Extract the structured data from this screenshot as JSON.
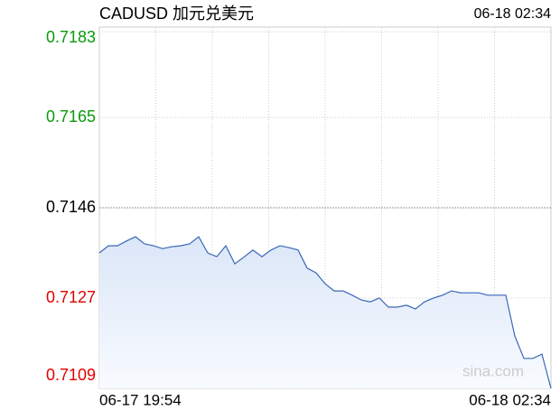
{
  "chart_data": {
    "type": "line",
    "title": "CADUSD 加元兑美元",
    "timestamp": "06-18 02:34",
    "watermark": "sina.com",
    "x_labels": [
      "06-17 19:54",
      "06-18 02:34"
    ],
    "ylim": [
      0.7108,
      0.7184
    ],
    "yticks": [
      0.7109,
      0.7127,
      0.7146,
      0.7165,
      0.7183
    ],
    "grid": true,
    "color": "#3a67b8",
    "up_color": "#0a9a0a",
    "down_color": "#e00000",
    "values": [
      0.71365,
      0.7138,
      0.7138,
      0.7139,
      0.71399,
      0.71384,
      0.7138,
      0.71374,
      0.71378,
      0.7138,
      0.71384,
      0.71399,
      0.71365,
      0.71357,
      0.7138,
      0.71342,
      0.71356,
      0.71371,
      0.71357,
      0.71371,
      0.7138,
      0.71376,
      0.71371,
      0.71333,
      0.71323,
      0.713,
      0.71285,
      0.71285,
      0.71276,
      0.71266,
      0.71262,
      0.7127,
      0.71251,
      0.71251,
      0.71255,
      0.71247,
      0.71262,
      0.7127,
      0.71276,
      0.71285,
      0.71281,
      0.71281,
      0.71281,
      0.71276,
      0.71276,
      0.71276,
      0.7119,
      0.71143,
      0.71143,
      0.71152,
      0.7108
    ]
  }
}
